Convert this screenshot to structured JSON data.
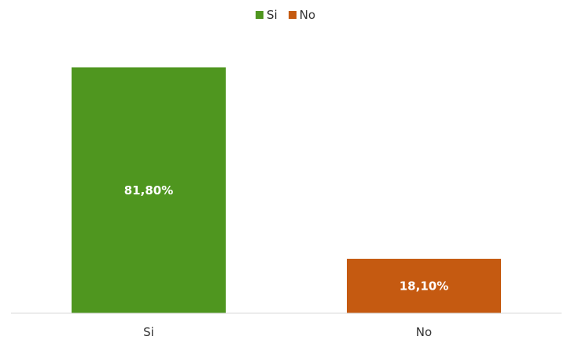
{
  "chart_data": {
    "type": "bar",
    "categories": [
      "Si",
      "No"
    ],
    "values": [
      81.8,
      18.1
    ],
    "data_labels": [
      "81,80%",
      "18,10%"
    ],
    "ylim": [
      0,
      100
    ],
    "grid": false,
    "legend": {
      "placement": "top-center",
      "entries": [
        "Si",
        "No"
      ]
    },
    "colors": [
      "#4f961f",
      "#c55a11"
    ]
  }
}
